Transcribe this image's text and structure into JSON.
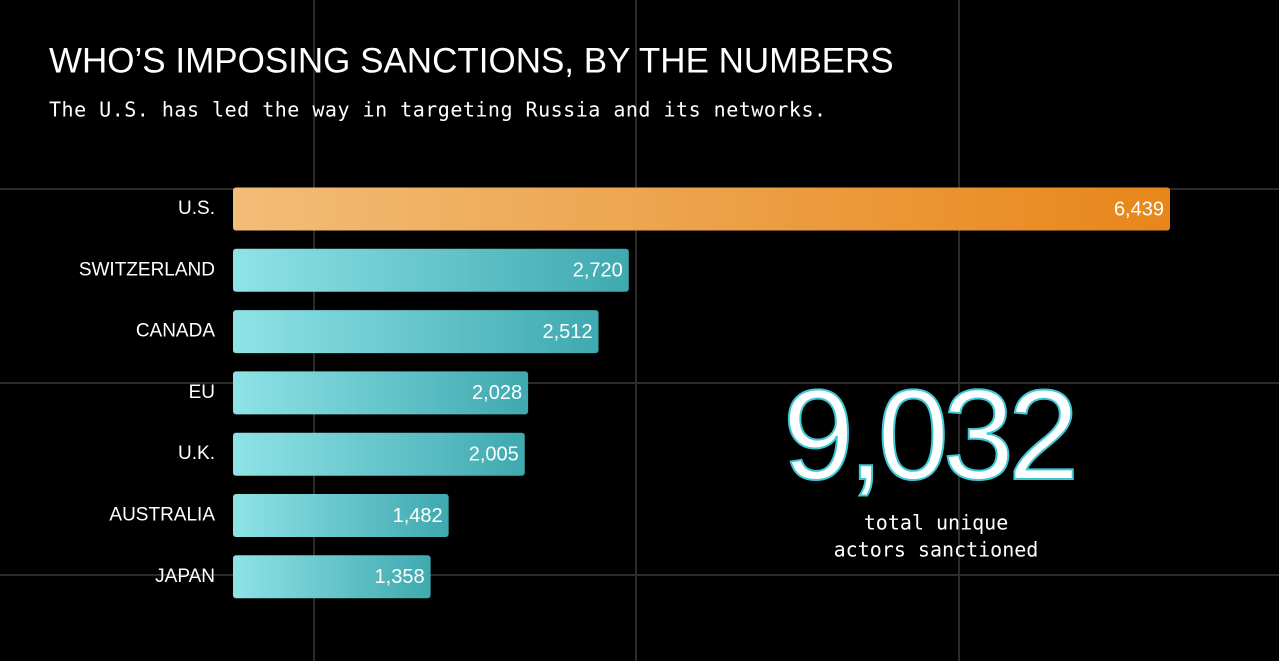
{
  "chart_data": {
    "type": "bar",
    "orientation": "horizontal",
    "title": "WHO’S IMPOSING SANCTIONS, BY THE NUMBERS",
    "subtitle": "The U.S. has led the way in targeting Russia and its networks.",
    "categories": [
      "U.S.",
      "SWITZERLAND",
      "CANADA",
      "EU",
      "U.K.",
      "AUSTRALIA",
      "JAPAN"
    ],
    "values": [
      6439,
      2720,
      2512,
      2028,
      2005,
      1482,
      1358
    ],
    "value_labels": [
      "6,439",
      "2,720",
      "2,512",
      "2,028",
      "2,005",
      "1,482",
      "1,358"
    ],
    "colors": [
      "#e8861a",
      "#3fa9b0",
      "#3fa9b0",
      "#3fa9b0",
      "#3fa9b0",
      "#3fa9b0",
      "#3fa9b0"
    ],
    "annotation": {
      "number": "9,032",
      "caption": [
        "total unique",
        "actors sanctioned"
      ],
      "color": "#3ec8d4"
    }
  }
}
